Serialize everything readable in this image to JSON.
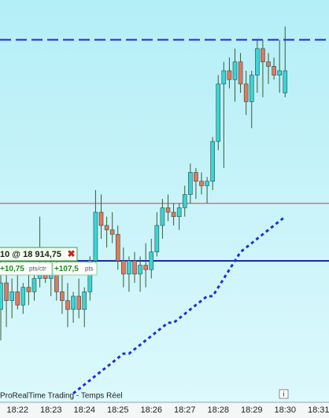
{
  "chart_data": {
    "type": "candlestick",
    "categories": [
      null,
      null,
      null,
      "18:22",
      null,
      null,
      null,
      null,
      null,
      "18:23",
      null,
      null,
      null,
      null,
      null,
      "18:24",
      null,
      null,
      null,
      null,
      null,
      "18:25",
      null,
      null,
      null,
      null,
      null,
      "18:26",
      null,
      null,
      null,
      null,
      null,
      "18:27",
      null,
      null,
      null,
      null,
      null,
      "18:28",
      null,
      null,
      null,
      null,
      null,
      "18:29",
      null,
      null,
      null,
      null,
      null,
      "18:30",
      null,
      null,
      null,
      null,
      null,
      "18:31"
    ],
    "open": [
      18912.0,
      18913.5,
      18912.5,
      18913.0,
      18912.25,
      18913.25,
      18913.0,
      18913.75,
      18914.5,
      18913.75,
      18914.25,
      18913.0,
      18912.5,
      18912.0,
      18912.75,
      18912.0,
      18913.0,
      18914.75,
      18917.5,
      18916.75,
      18916.5,
      18916.25,
      18914.75,
      18914.0,
      18914.75,
      18914.0,
      18914.5,
      18914.25,
      18915.25,
      18916.75,
      18917.75,
      18917.5,
      18917.25,
      18917.75,
      18918.5,
      18919.75,
      18919.25,
      18919.0,
      18919.25,
      18921.5,
      18924.75,
      18925.5,
      18925.0,
      18926.0,
      18924.75,
      18923.75,
      18925.25,
      18926.75,
      18926.0,
      18925.75,
      18925.25,
      18924.25,
      null,
      null,
      null,
      null,
      null,
      null
    ],
    "high": [
      18915.0,
      18914.5,
      18913.75,
      18914.0,
      18913.5,
      18914.25,
      18914.0,
      18917.25,
      18915.5,
      18914.75,
      18915.0,
      18914.0,
      18913.5,
      18913.0,
      18913.75,
      18913.25,
      18915.0,
      18918.75,
      18918.5,
      18917.25,
      18917.5,
      18916.75,
      18915.5,
      18915.0,
      18915.25,
      18915.0,
      18915.75,
      18916.0,
      18917.5,
      18918.25,
      18918.5,
      18918.0,
      18918.0,
      18919.0,
      18920.25,
      18920.0,
      18919.75,
      18919.5,
      18921.75,
      18925.25,
      18926.0,
      18926.25,
      18926.75,
      18926.5,
      18925.5,
      18925.5,
      18927.25,
      18927.25,
      18926.5,
      18926.25,
      18927.25,
      18928.0,
      null,
      null,
      null,
      null,
      null,
      null
    ],
    "low": [
      18910.25,
      18911.0,
      18911.5,
      18912.0,
      18911.75,
      18912.25,
      18912.5,
      18913.25,
      18913.5,
      18912.75,
      18912.5,
      18911.75,
      18911.0,
      18911.25,
      18911.5,
      18911.0,
      18912.5,
      18914.25,
      18916.0,
      18915.5,
      18915.75,
      18914.25,
      18913.25,
      18913.0,
      18913.5,
      18913.0,
      18913.25,
      18913.75,
      18915.0,
      18916.0,
      18917.0,
      18916.75,
      18916.5,
      18917.25,
      18918.0,
      18918.25,
      18918.5,
      18918.0,
      18918.75,
      18921.0,
      18920.0,
      18924.5,
      18923.75,
      18924.25,
      18923.0,
      18922.25,
      18924.25,
      18924.0,
      18924.75,
      18925.0,
      18924.25,
      18924.0,
      null,
      null,
      null,
      null,
      null,
      null
    ],
    "close": [
      18913.5,
      18912.5,
      18913.0,
      18912.25,
      18913.25,
      18913.0,
      18913.75,
      18914.5,
      18913.75,
      18914.25,
      18913.0,
      18912.5,
      18912.0,
      18912.75,
      18912.0,
      18913.0,
      18914.75,
      18917.5,
      18916.75,
      18916.5,
      18916.25,
      18914.75,
      18914.0,
      18914.75,
      18914.0,
      18914.5,
      18914.25,
      18915.25,
      18916.75,
      18917.75,
      18917.5,
      18917.25,
      18917.75,
      18918.5,
      18919.75,
      18919.25,
      18919.0,
      18919.25,
      18921.5,
      18924.75,
      18925.5,
      18925.0,
      18926.0,
      18924.75,
      18923.75,
      18925.25,
      18926.75,
      18926.0,
      18925.75,
      18925.25,
      18925.5,
      18925.5,
      null,
      null,
      null,
      null,
      null,
      null
    ],
    "colors": {
      "up": "#3fd2d2",
      "down": "#e4785c",
      "outline": "#1d4f4f"
    },
    "ylim": [
      18906.75,
      18929.5
    ],
    "lines": [
      {
        "value": 18927.25,
        "color": "#1f2fd6",
        "style": "dashed"
      },
      {
        "value": 18918.0,
        "color": "#c84040",
        "style": "solid"
      },
      {
        "value": 18914.75,
        "color": "#1a2aa8",
        "style": "solid"
      }
    ],
    "series": [
      {
        "type": "line",
        "color": "#1f2fd6",
        "style": "dotted",
        "values": [
          null,
          null,
          null,
          null,
          null,
          null,
          null,
          null,
          null,
          null,
          null,
          null,
          null,
          18907.25,
          18907.5,
          18907.75,
          18908.0,
          18908.25,
          18908.5,
          18908.75,
          18909.0,
          18909.25,
          18909.5,
          18909.5,
          18909.75,
          18910.0,
          18910.25,
          18910.5,
          18910.75,
          18911.0,
          18911.25,
          18911.25,
          18911.5,
          18911.75,
          18912.0,
          18912.25,
          18912.5,
          18912.75,
          18912.75,
          18913.25,
          18913.75,
          18914.25,
          18914.75,
          18915.25,
          18915.5,
          18915.75,
          18916.0,
          18916.25,
          18916.5,
          18916.75,
          18917.0,
          18917.25,
          null,
          null,
          null,
          null,
          null,
          null
        ]
      }
    ]
  },
  "order": {
    "label": "10 @ 18 914,75",
    "gain_pts": "+10,75",
    "gain_pts_unit": "pts/ctr",
    "gain_total": "+107,5",
    "gain_total_unit": "pts"
  },
  "footer": {
    "text": "ProRealTime Trading - Temps Réel",
    "info": "i"
  }
}
